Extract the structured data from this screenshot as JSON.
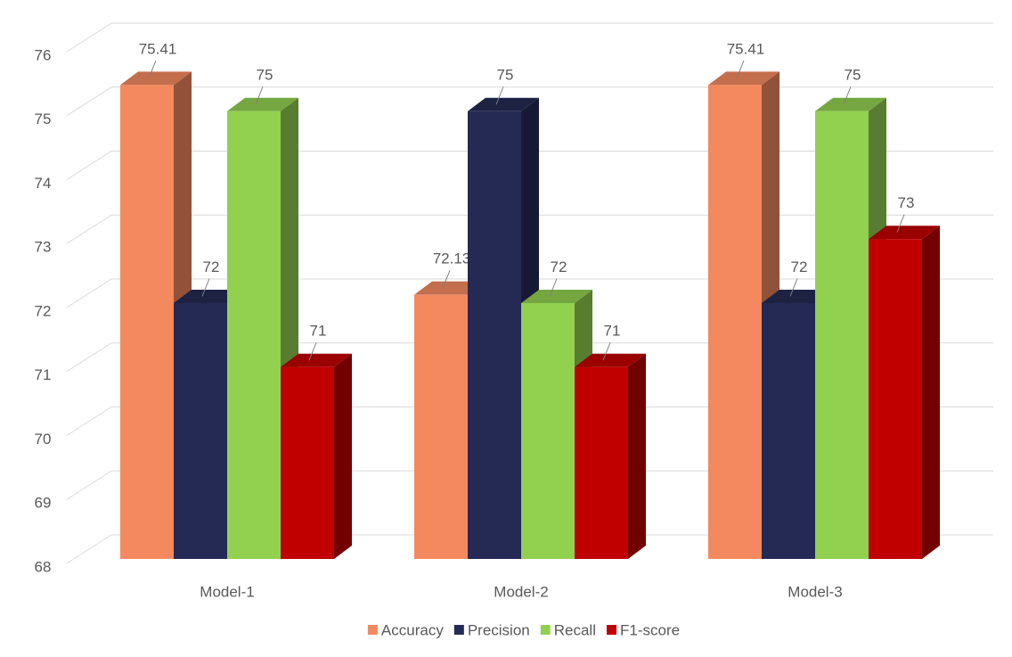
{
  "chart_data": {
    "type": "bar3d",
    "categories": [
      "Model-1",
      "Model-2",
      "Model-3"
    ],
    "series": [
      {
        "name": "Accuracy",
        "color": "#F4895F",
        "values": [
          75.41,
          72.13,
          75.41
        ]
      },
      {
        "name": "Precision",
        "color": "#242A54",
        "values": [
          72,
          75,
          72
        ]
      },
      {
        "name": "Recall",
        "color": "#92D050",
        "values": [
          75,
          72,
          75
        ]
      },
      {
        "name": "F1-score",
        "color": "#C00000",
        "values": [
          71,
          71,
          73
        ]
      }
    ],
    "ylim": [
      68,
      76
    ],
    "yticks": [
      68,
      69,
      70,
      71,
      72,
      73,
      74,
      75,
      76
    ],
    "grid": true,
    "legend": "bottom"
  }
}
